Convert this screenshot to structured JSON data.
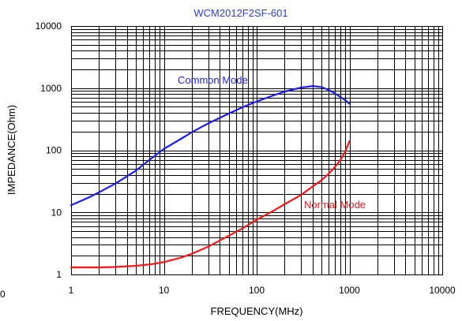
{
  "chart_data": {
    "type": "line",
    "title": "WCM2012F2SF-601",
    "title_color": "#2b3fe0",
    "xlabel": "FREQUENCY(MHz)",
    "ylabel": "IMPEDANCE(Ohm)",
    "xscale": "log",
    "yscale": "log",
    "xlim": [
      1,
      10000
    ],
    "ylim": [
      1,
      10000
    ],
    "xticks": [
      "1",
      "10",
      "100",
      "1000",
      "10000"
    ],
    "yticks": [
      "1",
      "10",
      "100",
      "1000",
      "10000"
    ],
    "grid": true,
    "grid_minor": true,
    "series": [
      {
        "name": "Common Mode",
        "color": "#1b1bf5",
        "x": [
          1,
          1.5,
          2,
          3,
          4,
          5,
          7,
          10,
          15,
          20,
          30,
          50,
          70,
          100,
          150,
          200,
          300,
          400,
          500,
          600,
          700,
          800,
          900,
          1000
        ],
        "y": [
          13,
          17,
          21,
          29,
          38,
          47,
          70,
          105,
          150,
          195,
          270,
          390,
          490,
          610,
          760,
          880,
          1020,
          1080,
          1040,
          930,
          820,
          720,
          640,
          560
        ]
      },
      {
        "name": "Normal Mode",
        "color": "#ff1414",
        "x": [
          1,
          2,
          3,
          5,
          7,
          10,
          15,
          20,
          30,
          50,
          70,
          100,
          150,
          200,
          300,
          400,
          500,
          600,
          700,
          800,
          900,
          1000
        ],
        "y": [
          1.3,
          1.3,
          1.32,
          1.38,
          1.45,
          1.58,
          1.85,
          2.15,
          2.8,
          4.2,
          5.5,
          7.6,
          10.5,
          13.5,
          19,
          26,
          33,
          42,
          54,
          70,
          95,
          140
        ]
      }
    ],
    "stray_tick_label": "0"
  }
}
